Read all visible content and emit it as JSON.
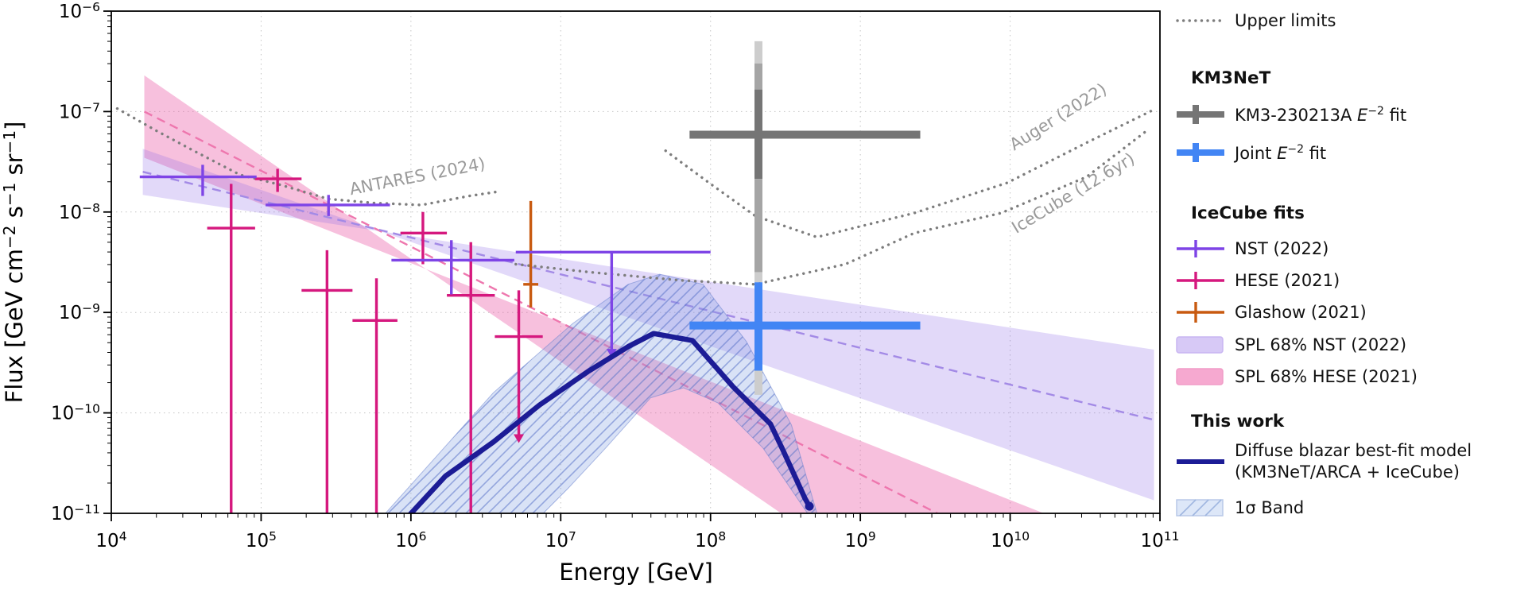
{
  "colors": {
    "nst": "#7e44e6",
    "hese": "#d5187e",
    "glashow": "#c85a10",
    "km3_dark": "#757575",
    "km3_mid": "#a5a5a5",
    "km3_light": "#cdcdcd",
    "joint_blue": "#4285f4",
    "navy": "#1c1c96",
    "band_nst": "rgba(140,105,230,0.25)",
    "band_hese": "rgba(233,90,165,0.38)",
    "dash_nst": "#a38ae6",
    "dash_hese": "#ee77ae",
    "sigma_fill": "rgba(130,160,225,0.30)",
    "sigma_hatch": "rgba(90,115,200,0.55)",
    "sigma_edge": "rgba(100,125,205,0.5)",
    "dotted": "#7d7d7d",
    "grid": "#c4c4c4",
    "label_gray": "#9a9a9a"
  },
  "chart_data": {
    "type": "composite",
    "title": "",
    "xlabel": "Energy [GeV]",
    "x_axis": {
      "scale": "log",
      "min_exp": 4,
      "max_exp": 11,
      "tick_exponents": [
        4,
        5,
        6,
        7,
        8,
        9,
        10,
        11
      ]
    },
    "y_axis": {
      "scale": "log",
      "min_exp": -11,
      "max_exp": -6,
      "tick_exponents": [
        -6,
        -7,
        -8,
        -9,
        -10,
        -11
      ],
      "label_parts": [
        [
          "t",
          "Flux [GeV cm"
        ],
        [
          "s",
          "−2"
        ],
        [
          "t",
          " s"
        ],
        [
          "s",
          "−1"
        ],
        [
          "t",
          " sr"
        ],
        [
          "s",
          "−1"
        ],
        [
          "t",
          "]"
        ]
      ]
    },
    "grid": {
      "x_exponents": [
        5,
        6,
        7,
        8,
        9,
        10
      ],
      "y_exponents": [
        -7,
        -8,
        -9,
        -10
      ]
    },
    "upper_limit_curves": [
      {
        "name": "ANTARES (2024)",
        "pts": [
          [
            4.04,
            -6.97
          ],
          [
            4.3,
            -7.19
          ],
          [
            4.55,
            -7.39
          ],
          [
            4.86,
            -7.63
          ],
          [
            5.13,
            -7.73
          ],
          [
            5.45,
            -7.87
          ],
          [
            5.75,
            -7.91
          ],
          [
            6.07,
            -7.93
          ],
          [
            6.39,
            -7.84
          ],
          [
            6.57,
            -7.8
          ]
        ],
        "label": {
          "text": "ANTARES (2024)",
          "x": 6.05,
          "y": -7.7,
          "rot": -11
        }
      },
      {
        "name": "Auger (2022)",
        "pts": [
          [
            7.7,
            -7.39
          ],
          [
            8.0,
            -7.72
          ],
          [
            8.3,
            -8.04
          ],
          [
            8.71,
            -8.25
          ],
          [
            9.36,
            -8.01
          ],
          [
            9.98,
            -7.71
          ],
          [
            10.51,
            -7.31
          ],
          [
            10.96,
            -6.98
          ]
        ],
        "label": {
          "text": "Auger (2022)",
          "x": 10.34,
          "y": -7.1,
          "rot": -32
        }
      },
      {
        "name": "IceCube (12.6yr)",
        "pts": [
          [
            6.7,
            -8.52
          ],
          [
            7.2,
            -8.6
          ],
          [
            7.8,
            -8.68
          ],
          [
            8.3,
            -8.72
          ],
          [
            8.9,
            -8.52
          ],
          [
            9.36,
            -8.21
          ],
          [
            9.94,
            -8.01
          ],
          [
            10.51,
            -7.65
          ],
          [
            10.93,
            -7.17
          ]
        ],
        "label": {
          "text": "IceCube (12.6yr)",
          "x": 10.44,
          "y": -7.86,
          "rot": -31
        }
      }
    ],
    "bands": {
      "hese_spl_68": {
        "polygon": [
          [
            4.22,
            -6.64
          ],
          [
            8.52,
            -11.05
          ],
          [
            10.31,
            -11.05
          ],
          [
            4.22,
            -7.46
          ]
        ]
      },
      "nst_spl_68": {
        "polygon": [
          [
            4.21,
            -7.37
          ],
          [
            10.96,
            -10.87
          ],
          [
            10.96,
            -9.37
          ],
          [
            4.21,
            -7.83
          ]
        ]
      },
      "sigma_band": {
        "polygon": [
          [
            5.8,
            -11.05
          ],
          [
            6.55,
            -9.8
          ],
          [
            7.08,
            -9.11
          ],
          [
            7.45,
            -8.72
          ],
          [
            7.66,
            -8.62
          ],
          [
            7.95,
            -8.72
          ],
          [
            8.24,
            -9.29
          ],
          [
            8.54,
            -10.12
          ],
          [
            8.72,
            -11.05
          ],
          [
            8.67,
            -11.05
          ],
          [
            8.35,
            -10.35
          ],
          [
            8.05,
            -9.9
          ],
          [
            7.82,
            -9.75
          ],
          [
            7.6,
            -9.85
          ],
          [
            7.3,
            -10.35
          ],
          [
            7.05,
            -10.75
          ],
          [
            6.85,
            -11.05
          ]
        ]
      }
    },
    "dashed_fit_lines": {
      "hese_center": [
        [
          4.22,
          -7.0
        ],
        [
          9.58,
          -11.05
        ]
      ],
      "nst_center": [
        [
          4.21,
          -7.6
        ],
        [
          10.96,
          -10.07
        ]
      ]
    },
    "points": {
      "nst_2022": [
        {
          "xlo": 4.19,
          "x": 4.61,
          "xhi": 4.97,
          "y": -7.65,
          "yup": -7.53,
          "ylo": -7.84
        },
        {
          "xlo": 5.03,
          "x": 5.45,
          "xhi": 5.86,
          "y": -7.93,
          "yup": -7.83,
          "ylo": -8.04
        },
        {
          "xlo": 5.87,
          "x": 6.27,
          "xhi": 6.69,
          "y": -8.48,
          "yup": -8.28,
          "ylo": -8.82
        },
        {
          "xlo": 6.7,
          "x": 7.34,
          "xhi": 8.0,
          "y": -8.4,
          "yup": -8.4,
          "arrow": -9.45
        }
      ],
      "hese_2021": [
        {
          "xlo": 4.64,
          "x": 4.8,
          "xhi": 4.96,
          "y": -8.16,
          "yup": -7.72,
          "ylo": -11.05
        },
        {
          "xlo": 4.96,
          "x": 5.11,
          "xhi": 5.27,
          "y": -7.67,
          "yup": -7.57,
          "ylo": -7.8
        },
        {
          "xlo": 5.27,
          "x": 5.44,
          "xhi": 5.61,
          "y": -8.78,
          "yup": -8.38,
          "ylo": -11.05
        },
        {
          "xlo": 5.61,
          "x": 5.77,
          "xhi": 5.91,
          "y": -9.08,
          "yup": -8.66,
          "ylo": -11.05
        },
        {
          "xlo": 5.93,
          "x": 6.08,
          "xhi": 6.24,
          "y": -8.21,
          "yup": -8.0,
          "ylo": -8.52
        },
        {
          "xlo": 6.24,
          "x": 6.4,
          "xhi": 6.56,
          "y": -8.83,
          "yup": -8.3,
          "ylo": -11.05
        },
        {
          "xlo": 6.56,
          "x": 6.72,
          "xhi": 6.88,
          "y": -9.24,
          "yup": -8.78,
          "arrow": -10.3
        }
      ],
      "glashow_2021": [
        {
          "xlo": 6.75,
          "x": 6.8,
          "xhi": 6.85,
          "y": -8.72,
          "yup": -7.89,
          "ylo": -8.95
        }
      ]
    },
    "km3_cross": {
      "energy_gev": 210000000.0,
      "flux": 5.9e-08,
      "x": 8.32,
      "xlo": 7.86,
      "xhi": 9.4,
      "y": -7.23,
      "segments": [
        {
          "f1": -6.3,
          "f2": -6.52,
          "c": "km3_light"
        },
        {
          "f1": -6.52,
          "f2": -6.78,
          "c": "km3_mid"
        },
        {
          "f1": -6.78,
          "f2": -7.67,
          "c": "km3_dark"
        },
        {
          "f1": -7.67,
          "f2": -8.6,
          "c": "km3_mid"
        },
        {
          "f1": -8.6,
          "f2": -8.7,
          "c": "km3_light"
        }
      ]
    },
    "joint_cross": {
      "energy_gev": 210000000.0,
      "flux": 7.4e-10,
      "x": 8.32,
      "xlo": 7.86,
      "xhi": 9.4,
      "y": -9.13,
      "bar": [
        -8.7,
        -9.58
      ],
      "tail": [
        -9.58,
        -9.82
      ]
    },
    "model_curve": {
      "pts": [
        [
          5.97,
          -11.05
        ],
        [
          6.23,
          -10.63
        ],
        [
          6.55,
          -10.29
        ],
        [
          6.86,
          -9.92
        ],
        [
          7.18,
          -9.59
        ],
        [
          7.45,
          -9.34
        ],
        [
          7.62,
          -9.21
        ],
        [
          7.88,
          -9.28
        ],
        [
          8.15,
          -9.74
        ],
        [
          8.4,
          -10.11
        ],
        [
          8.48,
          -10.36
        ],
        [
          8.63,
          -10.85
        ],
        [
          8.66,
          -10.93
        ]
      ],
      "end_dot": [
        8.66,
        -10.93
      ]
    }
  },
  "legend": {
    "upper_limits": "Upper limits",
    "km3net_header": "KM3NeT",
    "km3_fit": {
      "pre": "KM3-230213A ",
      "var": "E",
      "exp": "−2",
      "post": " fit"
    },
    "joint_fit": {
      "pre": "Joint ",
      "var": "E",
      "exp": "−2",
      "post": " fit"
    },
    "icecube_header": "IceCube fits",
    "nst": "NST (2022)",
    "hese": "HESE (2021)",
    "glashow": "Glashow (2021)",
    "spl_nst": "SPL 68% NST (2022)",
    "spl_hese": "SPL 68% HESE (2021)",
    "this_work_header": "This work",
    "blazar_line1": "Diffuse blazar best-fit model",
    "blazar_line2": "(KM3NeT/ARCA + IceCube)",
    "sigma": "1σ Band"
  }
}
